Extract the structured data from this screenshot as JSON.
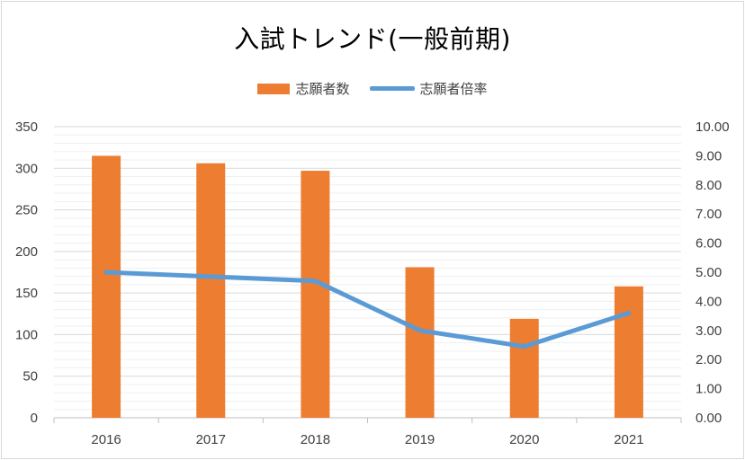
{
  "chart_data": {
    "type": "bar",
    "title": "入試トレンド(一般前期)",
    "categories": [
      "2016",
      "2017",
      "2018",
      "2019",
      "2020",
      "2021"
    ],
    "series": [
      {
        "name": "志願者数",
        "type": "bar",
        "axis": "left",
        "color": "#ed7d31",
        "values": [
          315,
          306,
          297,
          181,
          119,
          158
        ]
      },
      {
        "name": "志願者倍率",
        "type": "line",
        "axis": "right",
        "color": "#5b9bd5",
        "values": [
          5.0,
          4.85,
          4.7,
          3.0,
          2.45,
          3.6
        ]
      }
    ],
    "y_left": {
      "ylim": [
        0,
        350
      ],
      "ticks": [
        "0",
        "50",
        "100",
        "150",
        "200",
        "250",
        "300",
        "350"
      ]
    },
    "y_right": {
      "ylim": [
        0,
        10
      ],
      "ticks": [
        "0.00",
        "1.00",
        "2.00",
        "3.00",
        "4.00",
        "5.00",
        "6.00",
        "7.00",
        "8.00",
        "9.00",
        "10.00"
      ]
    },
    "grid": true,
    "legend_position": "top"
  }
}
